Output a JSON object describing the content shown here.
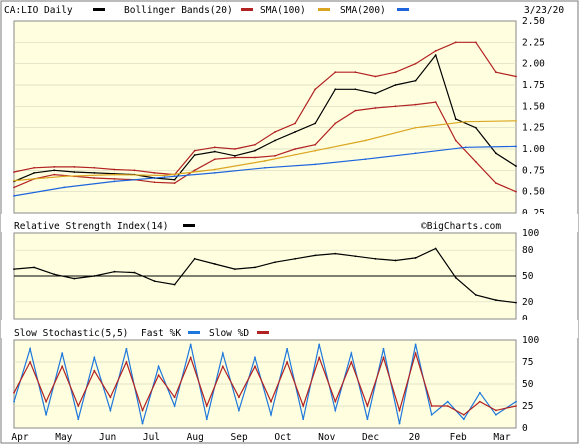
{
  "header": {
    "symbol": "CA:LIO Daily",
    "bollinger": "Bollinger Bands(20)",
    "sma100": "SMA(100)",
    "sma200": "SMA(200)",
    "date": "3/23/20"
  },
  "rsi_panel": {
    "title": "Relative Strength Index(14)",
    "watermark": "©BigCharts.com"
  },
  "stoch_panel": {
    "title": "Slow Stochastic(5,5)",
    "fast": "Fast %K",
    "slow": "Slow %D"
  },
  "colors": {
    "background": "#FFFFE0",
    "price": "#000000",
    "bollinger": "#B22222",
    "sma100": "#DAA520",
    "sma200": "#1E64DC",
    "fastK": "#1E78DC",
    "slowD": "#B22222"
  },
  "chart_data": [
    {
      "type": "line",
      "title": "CA:LIO Daily",
      "y_ticks": [
        "2.50",
        "2.25",
        "2.00",
        "1.75",
        "1.50",
        "1.25",
        "1.00",
        "0.75",
        "0.50",
        "0.25"
      ],
      "ylim": [
        0.25,
        2.5
      ],
      "x_labels": [
        "Apr",
        "May",
        "Jun",
        "Jul",
        "Aug",
        "Sep",
        "Oct",
        "Nov",
        "Dec",
        "20",
        "Feb",
        "Mar"
      ],
      "series": [
        {
          "name": "CA:LIO Daily",
          "x": [
            0,
            10,
            20,
            30,
            40,
            50,
            60,
            70,
            80,
            90,
            100,
            110,
            120,
            130,
            140,
            150,
            160,
            170,
            180,
            190,
            200,
            210,
            220,
            230,
            240,
            250
          ],
          "values": [
            0.62,
            0.72,
            0.75,
            0.73,
            0.72,
            0.71,
            0.7,
            0.66,
            0.64,
            0.93,
            0.97,
            0.92,
            0.98,
            1.1,
            1.2,
            1.3,
            1.7,
            1.7,
            1.65,
            1.75,
            1.8,
            2.1,
            1.35,
            1.25,
            0.95,
            0.8
          ]
        },
        {
          "name": "Bollinger Bands(20)",
          "x": [
            0,
            10,
            20,
            30,
            40,
            50,
            60,
            70,
            80,
            90,
            100,
            110,
            120,
            130,
            140,
            150,
            160,
            170,
            180,
            190,
            200,
            210,
            220,
            230,
            240,
            250
          ],
          "values": [
            0.73,
            0.78,
            0.79,
            0.79,
            0.78,
            0.76,
            0.75,
            0.72,
            0.7,
            0.98,
            1.02,
            1.0,
            1.05,
            1.2,
            1.3,
            1.7,
            1.9,
            1.9,
            1.85,
            1.9,
            2.0,
            2.15,
            2.25,
            2.25,
            1.9,
            1.85
          ]
        },
        {
          "name": "Bollinger Bands(20) lower",
          "x": [
            0,
            10,
            20,
            30,
            40,
            50,
            60,
            70,
            80,
            90,
            100,
            110,
            120,
            130,
            140,
            150,
            160,
            170,
            180,
            190,
            200,
            210,
            220,
            230,
            240,
            250
          ],
          "values": [
            0.55,
            0.65,
            0.7,
            0.68,
            0.66,
            0.65,
            0.64,
            0.61,
            0.6,
            0.75,
            0.88,
            0.9,
            0.9,
            0.92,
            1.0,
            1.05,
            1.3,
            1.45,
            1.48,
            1.5,
            1.52,
            1.55,
            1.1,
            0.85,
            0.6,
            0.5
          ]
        },
        {
          "name": "SMA(100)",
          "x": [
            0,
            25,
            50,
            75,
            100,
            125,
            150,
            175,
            200,
            225,
            250
          ],
          "values": [
            0.63,
            0.68,
            0.7,
            0.69,
            0.76,
            0.86,
            0.98,
            1.1,
            1.25,
            1.32,
            1.33
          ]
        },
        {
          "name": "SMA(200)",
          "x": [
            0,
            25,
            50,
            75,
            100,
            125,
            150,
            175,
            200,
            225,
            250
          ],
          "values": [
            0.45,
            0.55,
            0.62,
            0.67,
            0.72,
            0.78,
            0.82,
            0.88,
            0.95,
            1.02,
            1.03
          ]
        }
      ]
    },
    {
      "type": "line",
      "title": "Relative Strength Index(14)",
      "y_ticks": [
        "100",
        "80",
        "50",
        "20",
        "0"
      ],
      "ylim": [
        0,
        100
      ],
      "series": [
        {
          "name": "Relative Strength Index(14)",
          "x": [
            0,
            10,
            20,
            30,
            40,
            50,
            60,
            70,
            80,
            90,
            100,
            110,
            120,
            130,
            140,
            150,
            160,
            170,
            180,
            190,
            200,
            210,
            220,
            230,
            240,
            250
          ],
          "values": [
            58,
            60,
            52,
            47,
            50,
            55,
            54,
            44,
            40,
            70,
            64,
            58,
            60,
            66,
            70,
            74,
            76,
            73,
            70,
            68,
            71,
            82,
            48,
            28,
            22,
            19
          ]
        }
      ]
    },
    {
      "type": "line",
      "title": "Slow Stochastic(5,5)",
      "y_ticks": [
        "100",
        "75",
        "50",
        "25",
        "0"
      ],
      "ylim": [
        0,
        100
      ],
      "series": [
        {
          "name": "Fast %K",
          "x": [
            0,
            8,
            16,
            24,
            32,
            40,
            48,
            56,
            64,
            72,
            80,
            88,
            96,
            104,
            112,
            120,
            128,
            136,
            144,
            152,
            160,
            168,
            176,
            184,
            192,
            200,
            208,
            216,
            224,
            232,
            240,
            250
          ],
          "values": [
            30,
            90,
            15,
            85,
            10,
            80,
            20,
            90,
            5,
            70,
            25,
            95,
            10,
            85,
            20,
            80,
            15,
            90,
            10,
            95,
            20,
            85,
            10,
            90,
            5,
            95,
            15,
            30,
            10,
            40,
            15,
            30
          ]
        },
        {
          "name": "Slow %D",
          "x": [
            0,
            8,
            16,
            24,
            32,
            40,
            48,
            56,
            64,
            72,
            80,
            88,
            96,
            104,
            112,
            120,
            128,
            136,
            144,
            152,
            160,
            168,
            176,
            184,
            192,
            200,
            208,
            216,
            224,
            232,
            240,
            250
          ],
          "values": [
            40,
            75,
            30,
            70,
            25,
            65,
            35,
            75,
            20,
            60,
            35,
            80,
            25,
            70,
            35,
            70,
            30,
            75,
            25,
            80,
            30,
            75,
            25,
            80,
            20,
            85,
            25,
            25,
            15,
            30,
            20,
            25
          ]
        }
      ]
    }
  ]
}
